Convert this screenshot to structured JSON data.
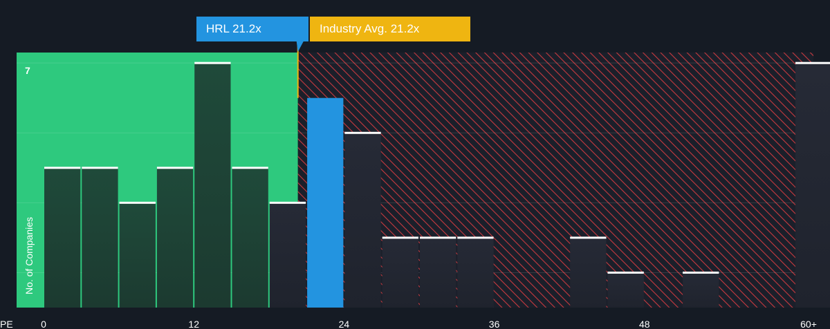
{
  "callouts": {
    "company_label": "HRL 21.2x",
    "industry_label": "Industry Avg. 21.2x"
  },
  "colors": {
    "background": "#151b24",
    "undervalued_zone": "#2ec97e",
    "overvalued_hatch": "#c93a3f",
    "company_bar": "#2394e0",
    "industry_marker": "#efb511"
  },
  "chart_data": {
    "type": "bar",
    "title": "",
    "xlabel": "PE",
    "ylabel": "No. of Companies",
    "x_ticks": [
      {
        "value": 0,
        "label": "0"
      },
      {
        "value": 12,
        "label": "12"
      },
      {
        "value": 24,
        "label": "24"
      },
      {
        "value": 36,
        "label": "36"
      },
      {
        "value": 48,
        "label": "48"
      },
      {
        "value": 60,
        "label": "60+"
      }
    ],
    "y_ticks": [
      {
        "value": 7,
        "label": "7"
      }
    ],
    "xlim": [
      -1,
      62.5
    ],
    "ylim": [
      0,
      7.3
    ],
    "bin_width": 3,
    "company_pe": 21.2,
    "industry_avg_pe": 21.2,
    "bins": [
      {
        "start": 0,
        "count": 4
      },
      {
        "start": 3,
        "count": 4
      },
      {
        "start": 6,
        "count": 3
      },
      {
        "start": 9,
        "count": 4
      },
      {
        "start": 12,
        "count": 7
      },
      {
        "start": 15,
        "count": 4
      },
      {
        "start": 18,
        "count": 3
      },
      {
        "start": 21,
        "count": 6,
        "highlight": true
      },
      {
        "start": 24,
        "count": 5
      },
      {
        "start": 27,
        "count": 2
      },
      {
        "start": 30,
        "count": 2
      },
      {
        "start": 33,
        "count": 2
      },
      {
        "start": 42,
        "count": 2
      },
      {
        "start": 45,
        "count": 1
      },
      {
        "start": 51,
        "count": 1
      },
      {
        "start": 60,
        "count": 7
      }
    ]
  }
}
